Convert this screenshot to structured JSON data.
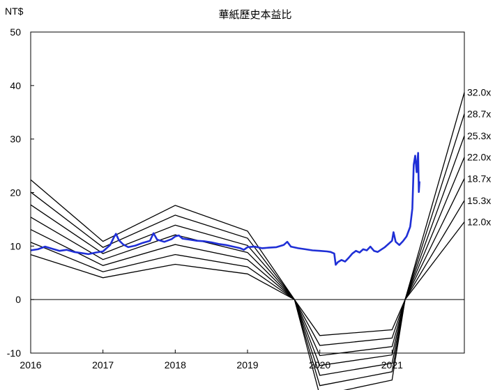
{
  "chart_data": {
    "type": "line",
    "title": "華紙歷史本益比",
    "ylabel": "NT$",
    "xlabel": "",
    "xlim": [
      2016,
      2022
    ],
    "ylim": [
      -10,
      50
    ],
    "x_ticks": [
      "2016",
      "2017",
      "2018",
      "2019",
      "2020",
      "2021"
    ],
    "y_ticks": [
      "-10",
      "0",
      "10",
      "20",
      "30",
      "40",
      "50"
    ],
    "grid": false,
    "colors": {
      "price": "#1f2fd6",
      "bands": "#000000",
      "axis": "#000000"
    },
    "band_x": [
      2016.0,
      2017.0,
      2018.0,
      2019.0,
      2019.65,
      2020.0,
      2021.0,
      2021.18,
      2022.0
    ],
    "band_eps": [
      0.7,
      0.34,
      0.55,
      0.4,
      0.0,
      -0.56,
      -0.47,
      0.0,
      1.21
    ],
    "series": [
      {
        "name": "32.0x",
        "multiple": 32.0
      },
      {
        "name": "28.7x",
        "multiple": 28.7
      },
      {
        "name": "25.3x",
        "multiple": 25.3
      },
      {
        "name": "22.0x",
        "multiple": 22.0
      },
      {
        "name": "18.7x",
        "multiple": 18.7
      },
      {
        "name": "15.3x",
        "multiple": 15.3
      },
      {
        "name": "12.0x",
        "multiple": 12.0
      }
    ],
    "price": [
      [
        2016.0,
        9.2
      ],
      [
        2016.1,
        9.4
      ],
      [
        2016.2,
        9.9
      ],
      [
        2016.3,
        9.5
      ],
      [
        2016.4,
        9.1
      ],
      [
        2016.5,
        9.3
      ],
      [
        2016.6,
        8.9
      ],
      [
        2016.7,
        8.7
      ],
      [
        2016.8,
        8.5
      ],
      [
        2016.9,
        8.8
      ],
      [
        2017.0,
        9.0
      ],
      [
        2017.05,
        9.6
      ],
      [
        2017.1,
        10.2
      ],
      [
        2017.15,
        11.6
      ],
      [
        2017.18,
        12.3
      ],
      [
        2017.22,
        11.1
      ],
      [
        2017.28,
        10.3
      ],
      [
        2017.35,
        9.8
      ],
      [
        2017.45,
        10.1
      ],
      [
        2017.55,
        10.6
      ],
      [
        2017.65,
        11.0
      ],
      [
        2017.7,
        12.4
      ],
      [
        2017.75,
        11.2
      ],
      [
        2017.85,
        10.8
      ],
      [
        2017.95,
        11.3
      ],
      [
        2018.0,
        11.8
      ],
      [
        2018.05,
        12.0
      ],
      [
        2018.1,
        11.4
      ],
      [
        2018.2,
        11.2
      ],
      [
        2018.3,
        11.0
      ],
      [
        2018.4,
        10.9
      ],
      [
        2018.5,
        10.7
      ],
      [
        2018.6,
        10.4
      ],
      [
        2018.7,
        10.2
      ],
      [
        2018.8,
        9.9
      ],
      [
        2018.9,
        9.6
      ],
      [
        2018.95,
        9.3
      ],
      [
        2019.0,
        9.8
      ],
      [
        2019.1,
        9.9
      ],
      [
        2019.2,
        9.6
      ],
      [
        2019.3,
        9.7
      ],
      [
        2019.4,
        9.8
      ],
      [
        2019.5,
        10.2
      ],
      [
        2019.55,
        10.8
      ],
      [
        2019.6,
        9.9
      ],
      [
        2019.7,
        9.6
      ],
      [
        2019.8,
        9.4
      ],
      [
        2019.9,
        9.2
      ],
      [
        2020.0,
        9.1
      ],
      [
        2020.1,
        9.0
      ],
      [
        2020.15,
        8.9
      ],
      [
        2020.2,
        8.6
      ],
      [
        2020.22,
        6.5
      ],
      [
        2020.25,
        7.0
      ],
      [
        2020.3,
        7.4
      ],
      [
        2020.35,
        7.1
      ],
      [
        2020.4,
        7.8
      ],
      [
        2020.45,
        8.6
      ],
      [
        2020.5,
        9.1
      ],
      [
        2020.55,
        8.8
      ],
      [
        2020.6,
        9.4
      ],
      [
        2020.65,
        9.2
      ],
      [
        2020.7,
        9.9
      ],
      [
        2020.75,
        9.1
      ],
      [
        2020.8,
        8.9
      ],
      [
        2020.9,
        9.8
      ],
      [
        2021.0,
        11.0
      ],
      [
        2021.02,
        12.6
      ],
      [
        2021.05,
        10.8
      ],
      [
        2021.1,
        10.2
      ],
      [
        2021.15,
        10.9
      ],
      [
        2021.2,
        11.8
      ],
      [
        2021.25,
        13.6
      ],
      [
        2021.28,
        17.0
      ],
      [
        2021.3,
        25.2
      ],
      [
        2021.32,
        26.9
      ],
      [
        2021.34,
        23.8
      ],
      [
        2021.36,
        27.4
      ],
      [
        2021.37,
        20.1
      ],
      [
        2021.38,
        22.1
      ]
    ]
  }
}
